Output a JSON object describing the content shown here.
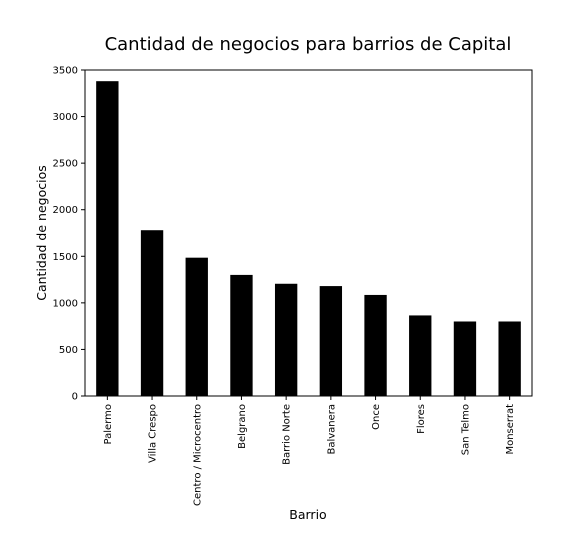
{
  "chart_data": {
    "type": "bar",
    "title": "Cantidad de negocios para barrios de Capital",
    "xlabel": "Barrio",
    "ylabel": "Cantidad de negocios",
    "categories": [
      "Palermo",
      "Villa Crespo",
      "Centro / Microcentro",
      "Belgrano",
      "Barrio Norte",
      "Balvanera",
      "Once",
      "Flores",
      "San Telmo",
      "Monserrat"
    ],
    "values": [
      3380,
      1780,
      1485,
      1300,
      1205,
      1180,
      1085,
      865,
      800,
      800
    ],
    "ylim": [
      0,
      3500
    ],
    "yticks": [
      0,
      500,
      1000,
      1500,
      2000,
      2500,
      3000,
      3500
    ],
    "grid": false,
    "bar_color": "#000000"
  }
}
